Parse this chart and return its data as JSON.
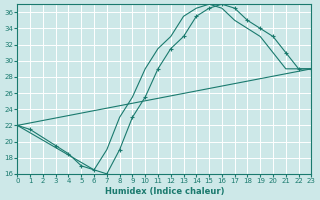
{
  "xlabel": "Humidex (Indice chaleur)",
  "xlim": [
    0,
    23
  ],
  "ylim": [
    16,
    37
  ],
  "xticks": [
    0,
    1,
    2,
    3,
    4,
    5,
    6,
    7,
    8,
    9,
    10,
    11,
    12,
    13,
    14,
    15,
    16,
    17,
    18,
    19,
    20,
    21,
    22,
    23
  ],
  "yticks": [
    16,
    18,
    20,
    22,
    24,
    26,
    28,
    30,
    32,
    34,
    36
  ],
  "bg_color": "#cde8e8",
  "grid_color": "#ffffff",
  "line_color": "#1a7a6e",
  "line1_x": [
    0,
    23
  ],
  "line1_y": [
    22,
    29
  ],
  "line2_x": [
    0,
    1,
    3,
    4,
    5,
    6,
    7,
    8,
    9,
    10,
    11,
    12,
    13,
    14,
    15,
    16,
    17,
    18,
    19,
    20,
    21,
    22,
    23
  ],
  "line2_y": [
    22,
    21.5,
    19.5,
    18.5,
    17,
    16.5,
    16,
    19,
    23,
    25.5,
    29,
    31.5,
    33,
    35.5,
    36.5,
    37,
    36.5,
    35,
    34,
    33,
    31,
    29,
    29
  ],
  "line3_x": [
    0,
    6,
    7,
    8,
    9,
    10,
    11,
    12,
    13,
    14,
    15,
    16,
    17,
    18,
    19,
    20,
    21,
    22,
    23
  ],
  "line3_y": [
    22,
    16.5,
    19,
    23,
    25.5,
    29,
    31.5,
    33,
    35.5,
    36.5,
    37,
    36.5,
    35,
    34,
    33,
    31,
    29,
    29,
    29
  ]
}
